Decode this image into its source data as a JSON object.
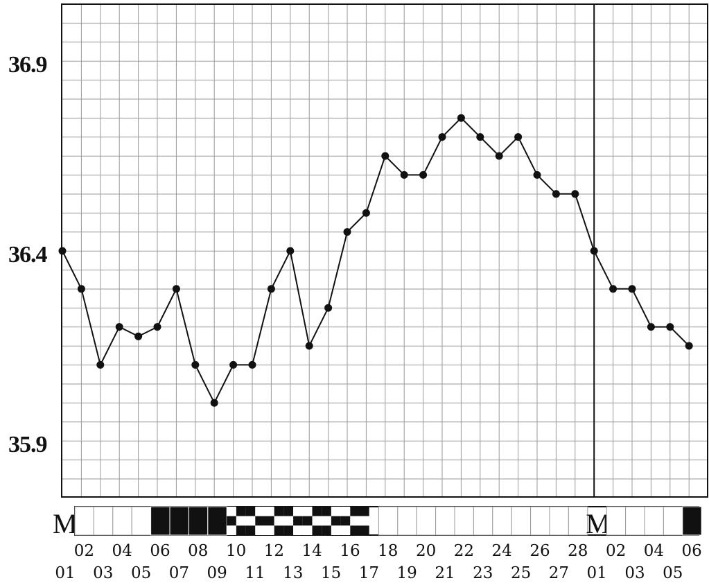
{
  "chart_data": {
    "type": "line",
    "title": "",
    "xlabel": "",
    "ylabel": "",
    "y_tick_labels": [
      "36.9",
      "36.4",
      "35.9"
    ],
    "y_ticks": [
      36.9,
      36.4,
      35.9
    ],
    "ylim": [
      35.8,
      36.95
    ],
    "grid": true,
    "legend": "none",
    "day_labels": [
      "01",
      "02",
      "03",
      "04",
      "05",
      "06",
      "07",
      "08",
      "09",
      "10",
      "11",
      "12",
      "13",
      "14",
      "15",
      "16",
      "17",
      "18",
      "19",
      "20",
      "21",
      "22",
      "23",
      "24",
      "25",
      "26",
      "27",
      "28",
      "01",
      "02",
      "03",
      "04",
      "05",
      "06"
    ],
    "series": [
      {
        "values": [
          36.4,
          36.3,
          36.1,
          36.2,
          36.175,
          36.2,
          36.3,
          36.1,
          36.0,
          36.1,
          36.1,
          36.3,
          36.4,
          36.15,
          36.25,
          36.45,
          36.5,
          36.65,
          36.6,
          36.6,
          36.7,
          36.75,
          36.7,
          36.65,
          36.7,
          36.6,
          36.55,
          36.55,
          36.4,
          36.3,
          36.3,
          36.2,
          36.2,
          36.15
        ]
      }
    ],
    "cycle_marker_letter": "M",
    "cycle_boundary_after_day": "28",
    "day_strip": [
      "M",
      "empty",
      "empty",
      "empty",
      "empty",
      "solid",
      "solid",
      "solid",
      "solid",
      "check",
      "check",
      "check",
      "check",
      "check",
      "check",
      "check",
      "check-half",
      "empty",
      "empty",
      "empty",
      "empty",
      "empty",
      "empty",
      "empty",
      "empty",
      "empty",
      "empty",
      "empty",
      "M",
      "empty",
      "empty",
      "empty",
      "empty",
      "solid"
    ]
  },
  "colors": {
    "background": "#ffffff",
    "grid": "#9a9a9a",
    "line": "#111111",
    "frame": "#111111"
  }
}
